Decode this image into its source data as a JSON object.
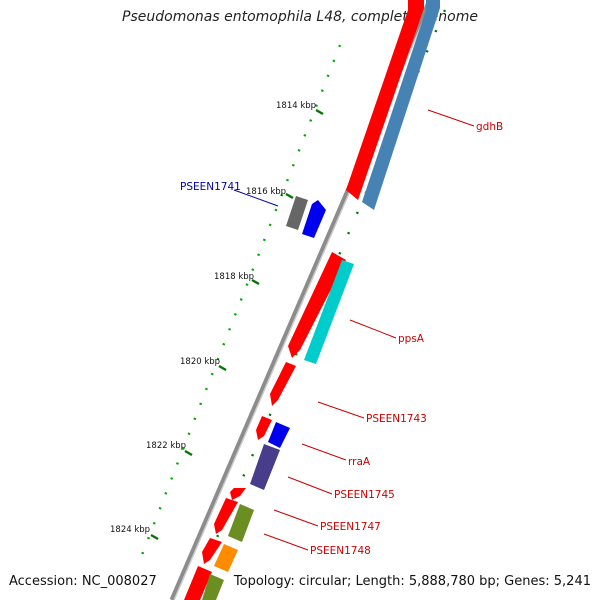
{
  "header": {
    "title": "Pseudomonas entomophila L48, complete genome"
  },
  "footer": {
    "accession": "Accession: NC_008027",
    "summary": "Topology: circular; Length: 5,888,780 bp; Genes: 5,241"
  },
  "scale_labels": [
    "1814 kbp",
    "1816 kbp",
    "1818 kbp",
    "1820 kbp",
    "1822 kbp",
    "1824 kbp"
  ],
  "gene_labels": [
    {
      "text": "gdhB",
      "color": "#cc0000"
    },
    {
      "text": "PSEEN1741",
      "color": "#0000aa"
    },
    {
      "text": "ppsA",
      "color": "#cc0000"
    },
    {
      "text": "PSEEN1743",
      "color": "#cc0000"
    },
    {
      "text": "rraA",
      "color": "#cc0000"
    },
    {
      "text": "PSEEN1745",
      "color": "#cc0000"
    },
    {
      "text": "PSEEN1747",
      "color": "#cc0000"
    },
    {
      "text": "PSEEN1748",
      "color": "#cc0000"
    }
  ],
  "colors": {
    "backbone": "#8c8c8c",
    "cds_forward": "#ff0000",
    "blue_feature": "#0000ee",
    "gray_feature": "#666666",
    "steelblue_feature": "#4682b4",
    "cyan_feature": "#00cccc",
    "purple_feature": "#483d8b",
    "olive_feature": "#6b8e23",
    "orange_feature": "#ff8c00",
    "tick_green": "#007700"
  }
}
